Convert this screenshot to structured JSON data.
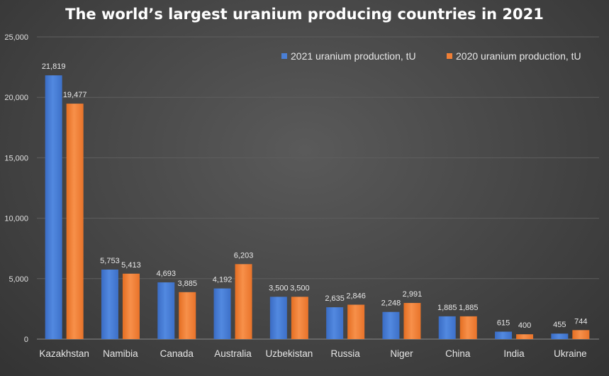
{
  "chart_data": {
    "type": "bar",
    "title": "The world’s largest uranium producing countries in 2021",
    "xlabel": "",
    "ylabel": "",
    "ylim": [
      0,
      25000
    ],
    "y_ticks": [
      0,
      5000,
      10000,
      15000,
      20000,
      25000
    ],
    "y_tick_labels": [
      "0",
      "5,000",
      "10,000",
      "15,000",
      "20,000",
      "25,000"
    ],
    "categories": [
      "Kazakhstan",
      "Namibia",
      "Canada",
      "Australia",
      "Uzbekistan",
      "Russia",
      "Niger",
      "China",
      "India",
      "Ukraine"
    ],
    "series": [
      {
        "name": "2021 uranium production, tU",
        "color": "#4a7fd6",
        "values": [
          21819,
          5753,
          4693,
          4192,
          3500,
          2635,
          2248,
          1885,
          615,
          455
        ],
        "labels": [
          "21,819",
          "5,753",
          "4,693",
          "4,192",
          "3,500",
          "2,635",
          "2,248",
          "1,885",
          "615",
          "455"
        ]
      },
      {
        "name": "2020 uranium production, tU",
        "color": "#f07f36",
        "values": [
          19477,
          5413,
          3885,
          6203,
          3500,
          2846,
          2991,
          1885,
          400,
          744
        ],
        "labels": [
          "19,477",
          "5,413",
          "3,885",
          "6,203",
          "3,500",
          "2,846",
          "2,991",
          "1,885",
          "400",
          "744"
        ]
      }
    ],
    "legend_position": "top-right",
    "grid": true
  }
}
